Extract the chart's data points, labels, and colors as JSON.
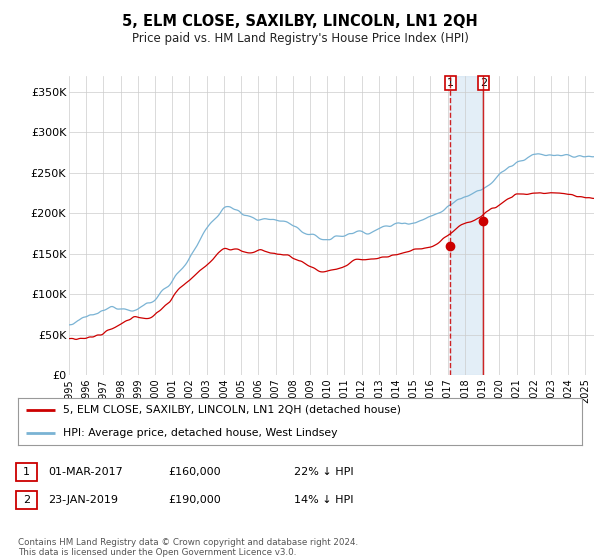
{
  "title": "5, ELM CLOSE, SAXILBY, LINCOLN, LN1 2QH",
  "subtitle": "Price paid vs. HM Land Registry's House Price Index (HPI)",
  "background_color": "#ffffff",
  "plot_bg_color": "#ffffff",
  "xmin": 1995.0,
  "xmax": 2025.5,
  "ymin": 0,
  "ymax": 370000,
  "yticks": [
    0,
    50000,
    100000,
    150000,
    200000,
    250000,
    300000,
    350000
  ],
  "ytick_labels": [
    "£0",
    "£50K",
    "£100K",
    "£150K",
    "£200K",
    "£250K",
    "£300K",
    "£350K"
  ],
  "xtick_years": [
    1995,
    1996,
    1997,
    1998,
    1999,
    2000,
    2001,
    2002,
    2003,
    2004,
    2005,
    2006,
    2007,
    2008,
    2009,
    2010,
    2011,
    2012,
    2013,
    2014,
    2015,
    2016,
    2017,
    2018,
    2019,
    2020,
    2021,
    2022,
    2023,
    2024,
    2025
  ],
  "hpi_color": "#7ab3d4",
  "sale_color": "#cc0000",
  "transaction1_x": 2017.16,
  "transaction1_y": 160000,
  "transaction2_x": 2019.07,
  "transaction2_y": 190000,
  "vline1_color": "#cc0000",
  "vline1_style": "--",
  "vline2_color": "#cc0000",
  "vline2_style": "-",
  "span_color": "#c8dff0",
  "span_alpha": 0.5,
  "legend_label_sale": "5, ELM CLOSE, SAXILBY, LINCOLN, LN1 2QH (detached house)",
  "legend_label_hpi": "HPI: Average price, detached house, West Lindsey",
  "footer": "Contains HM Land Registry data © Crown copyright and database right 2024.\nThis data is licensed under the Open Government Licence v3.0.",
  "label1": "1",
  "label2": "2"
}
